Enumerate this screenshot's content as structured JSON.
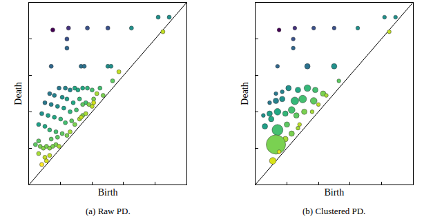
{
  "chart_data": [
    {
      "type": "scatter",
      "title": "(a) Raw PD.",
      "x_label": "Birth",
      "y_label": "Death",
      "xlim": [
        0,
        1
      ],
      "ylim": [
        0,
        1
      ],
      "xticks": [
        0.2,
        0.4,
        0.6,
        0.8
      ],
      "yticks": [
        0.2,
        0.4,
        0.6,
        0.8
      ],
      "tick_labels": false,
      "grid": false,
      "x": [
        0.15,
        0.25,
        0.37,
        0.5,
        0.24,
        0.24,
        0.14,
        0.33,
        0.35,
        0.5,
        0.52,
        0.53,
        0.65,
        0.82,
        0.89,
        0.85,
        0.19,
        0.23,
        0.26,
        0.29,
        0.31,
        0.34,
        0.37,
        0.4,
        0.45,
        0.13,
        0.16,
        0.21,
        0.24,
        0.28,
        0.32,
        0.36,
        0.41,
        0.47,
        0.43,
        0.1,
        0.14,
        0.18,
        0.22,
        0.26,
        0.3,
        0.34,
        0.36,
        0.4,
        0.08,
        0.12,
        0.16,
        0.2,
        0.23,
        0.27,
        0.29,
        0.32,
        0.06,
        0.1,
        0.13,
        0.17,
        0.21,
        0.24,
        0.26,
        0.04,
        0.07,
        0.09,
        0.11,
        0.13,
        0.15,
        0.17,
        0.19,
        0.06,
        0.1,
        0.13,
        0.11,
        0.08,
        0.06,
        0.14,
        0.18,
        0.34,
        0.38,
        0.33,
        0.41,
        0.57
      ],
      "y": [
        0.85,
        0.86,
        0.86,
        0.86,
        0.8,
        0.75,
        0.65,
        0.65,
        0.65,
        0.65,
        0.65,
        0.57,
        0.86,
        0.92,
        0.92,
        0.84,
        0.53,
        0.53,
        0.52,
        0.53,
        0.52,
        0.53,
        0.53,
        0.52,
        0.53,
        0.5,
        0.49,
        0.48,
        0.47,
        0.45,
        0.47,
        0.45,
        0.47,
        0.49,
        0.5,
        0.45,
        0.44,
        0.43,
        0.42,
        0.4,
        0.41,
        0.38,
        0.39,
        0.43,
        0.39,
        0.38,
        0.37,
        0.36,
        0.34,
        0.35,
        0.33,
        0.36,
        0.33,
        0.32,
        0.3,
        0.29,
        0.28,
        0.27,
        0.29,
        0.22,
        0.21,
        0.2,
        0.21,
        0.2,
        0.21,
        0.22,
        0.21,
        0.17,
        0.15,
        0.16,
        0.13,
        0.11,
        0.24,
        0.25,
        0.26,
        0.44,
        0.44,
        0.37,
        0.45,
        0.62
      ],
      "colors": [
        "#440154",
        "#46327e",
        "#3b528b",
        "#3b528b",
        "#3b528b",
        "#31688e",
        "#31688e",
        "#2c728e",
        "#2c728e",
        "#21918c",
        "#21918c",
        "#5ec962",
        "#21918c",
        "#21918c",
        "#21918c",
        "#c2df23",
        "#2a788e",
        "#25848e",
        "#25848e",
        "#22a884",
        "#22a884",
        "#22a884",
        "#2fb47c",
        "#44bf70",
        "#44bf70",
        "#2a788e",
        "#26828e",
        "#21918c",
        "#1fa088",
        "#22a884",
        "#35b779",
        "#44bf70",
        "#7ad151",
        "#7ad151",
        "#a5db36",
        "#2a788e",
        "#26828e",
        "#21918c",
        "#1fa088",
        "#2fb47c",
        "#44bf70",
        "#7ad151",
        "#a5db36",
        "#bddf26",
        "#21918c",
        "#1fa088",
        "#22a884",
        "#35b779",
        "#44bf70",
        "#5ec962",
        "#7ad151",
        "#a5db36",
        "#1fa088",
        "#22a884",
        "#35b779",
        "#44bf70",
        "#5ec962",
        "#7ad151",
        "#a5db36",
        "#5ec962",
        "#7ad151",
        "#86d549",
        "#7ad151",
        "#86d549",
        "#7ad151",
        "#7ad151",
        "#a5db36",
        "#a5db36",
        "#c2df23",
        "#c2df23",
        "#d8e219",
        "#fde725",
        "#5ec962",
        "#5ec962",
        "#5ec962",
        "#5ec962",
        "#86d549",
        "#c2df23",
        "#d2e21b",
        "#c2df23"
      ]
    },
    {
      "type": "scatter",
      "title": "(b) Clustered PD.",
      "x_label": "Birth",
      "y_label": "Death",
      "xlim": [
        0,
        1
      ],
      "ylim": [
        0,
        1
      ],
      "xticks": [
        0.2,
        0.4,
        0.6,
        0.8
      ],
      "yticks": [
        0.2,
        0.4,
        0.6,
        0.8
      ],
      "tick_labels": false,
      "grid": false,
      "x": [
        0.15,
        0.25,
        0.37,
        0.5,
        0.24,
        0.24,
        0.14,
        0.33,
        0.5,
        0.53,
        0.65,
        0.82,
        0.89,
        0.85,
        0.13,
        0.17,
        0.21,
        0.27,
        0.33,
        0.38,
        0.09,
        0.13,
        0.17,
        0.25,
        0.3,
        0.37,
        0.43,
        0.45,
        0.05,
        0.09,
        0.14,
        0.19,
        0.23,
        0.26,
        0.31,
        0.36,
        0.4,
        0.06,
        0.14,
        0.2,
        0.23,
        0.27,
        0.28,
        0.19,
        0.17,
        0.1,
        0.13,
        0.11,
        0.15
      ],
      "y": [
        0.85,
        0.86,
        0.86,
        0.86,
        0.8,
        0.75,
        0.65,
        0.65,
        0.65,
        0.57,
        0.86,
        0.92,
        0.92,
        0.84,
        0.5,
        0.51,
        0.53,
        0.52,
        0.53,
        0.52,
        0.45,
        0.46,
        0.47,
        0.46,
        0.47,
        0.46,
        0.5,
        0.49,
        0.38,
        0.39,
        0.4,
        0.39,
        0.41,
        0.38,
        0.4,
        0.4,
        0.44,
        0.32,
        0.3,
        0.33,
        0.28,
        0.31,
        0.33,
        0.25,
        0.2,
        0.36,
        0.22,
        0.13,
        0.18
      ],
      "sizes": [
        1,
        1,
        1,
        1,
        1,
        1,
        1,
        2,
        2,
        1,
        1,
        1,
        1,
        1,
        1,
        1,
        2,
        2,
        3,
        2,
        1,
        2,
        2,
        4,
        4,
        3,
        2,
        1,
        1,
        2,
        3,
        2,
        3,
        2,
        2,
        1,
        1,
        2,
        8,
        2,
        2,
        1,
        1,
        2,
        1,
        2,
        25,
        3,
        1
      ],
      "colors": [
        "#440154",
        "#46327e",
        "#3b528b",
        "#3b528b",
        "#3b528b",
        "#31688e",
        "#31688e",
        "#2c728e",
        "#21918c",
        "#5ec962",
        "#21918c",
        "#21918c",
        "#21918c",
        "#c2df23",
        "#2a788e",
        "#26828e",
        "#21918c",
        "#22a884",
        "#35b779",
        "#44bf70",
        "#2a788e",
        "#26828e",
        "#21918c",
        "#35b779",
        "#44bf70",
        "#5ec962",
        "#7ad151",
        "#a5db36",
        "#21918c",
        "#1fa088",
        "#22a884",
        "#35b779",
        "#44bf70",
        "#5ec962",
        "#7ad151",
        "#a5db36",
        "#bddf26",
        "#1fa088",
        "#44bf70",
        "#5ec962",
        "#7ad151",
        "#a5db36",
        "#bddf26",
        "#a5db36",
        "#c2df23",
        "#22a884",
        "#7ad151",
        "#d8e219",
        "#e5e419"
      ]
    }
  ]
}
